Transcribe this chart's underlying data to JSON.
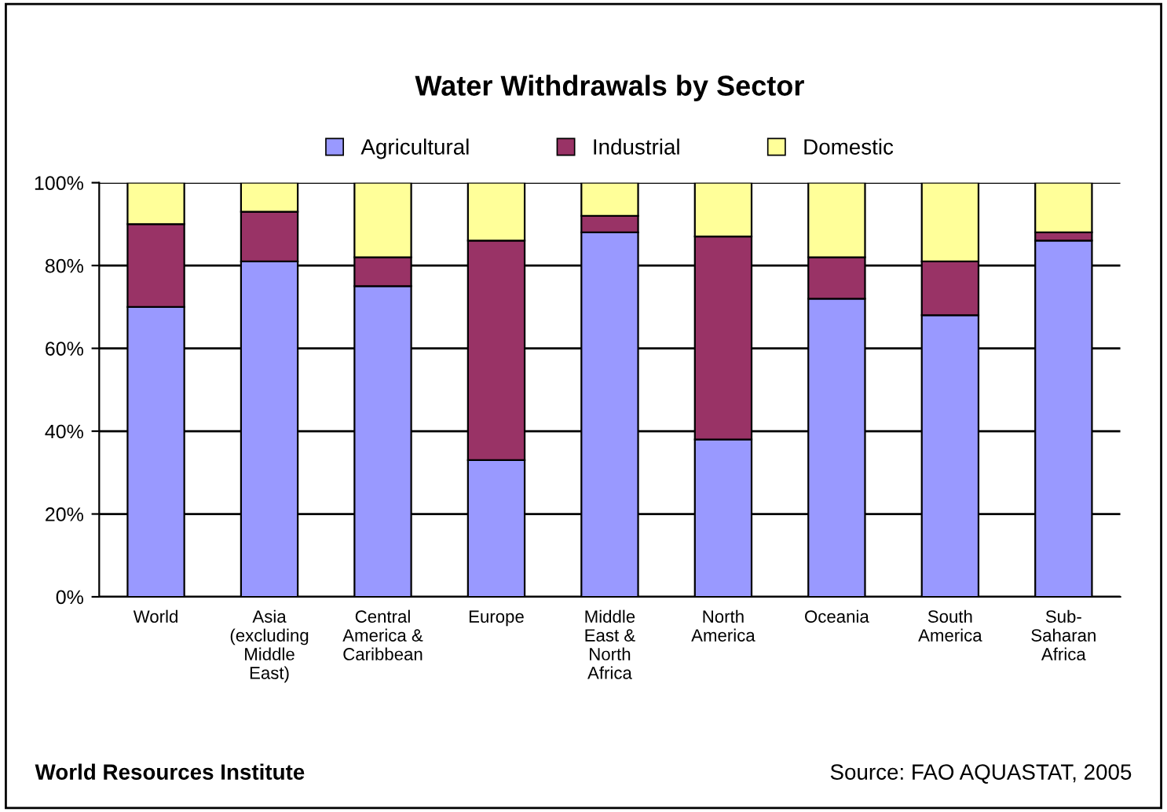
{
  "chart_data": {
    "type": "bar",
    "title": "Water Withdrawals by Sector",
    "stacked": true,
    "legend": "top",
    "grid": "y",
    "categories": [
      "World",
      "Asia\n(excluding\nMiddle\nEast)",
      "Central\nAmerica &\nCaribbean",
      "Europe",
      "Middle\nEast &\nNorth\nAfrica",
      "North\nAmerica",
      "Oceania",
      "South\nAmerica",
      "Sub-\nSaharan\nAfrica"
    ],
    "series": [
      {
        "name": "Agricultural",
        "color": "#9999ff",
        "values": [
          70,
          81,
          75,
          33,
          88,
          38,
          72,
          68,
          86
        ]
      },
      {
        "name": "Industrial",
        "color": "#993366",
        "values": [
          20,
          12,
          7,
          53,
          4,
          49,
          10,
          13,
          2
        ]
      },
      {
        "name": "Domestic",
        "color": "#ffff99",
        "values": [
          10,
          7,
          18,
          14,
          8,
          13,
          18,
          19,
          12
        ]
      }
    ],
    "ylim": [
      0,
      100
    ],
    "yticks": [
      {
        "value": 0,
        "label": "0%"
      },
      {
        "value": 20,
        "label": "20%"
      },
      {
        "value": 40,
        "label": "40%"
      },
      {
        "value": 60,
        "label": "60%"
      },
      {
        "value": 80,
        "label": "80%"
      },
      {
        "value": 100,
        "label": "100%"
      }
    ],
    "annotations": [
      "World Resources Institute",
      "Source: FAO AQUASTAT, 2005"
    ]
  }
}
